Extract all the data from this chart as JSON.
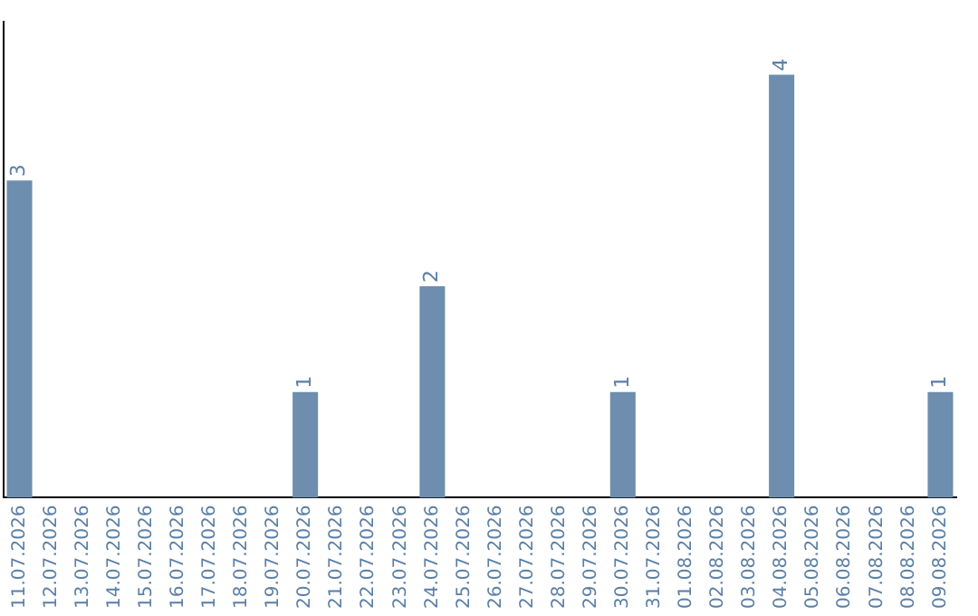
{
  "chart_data": {
    "type": "bar",
    "categories": [
      "11.07.2026",
      "12.07.2026",
      "13.07.2026",
      "14.07.2026",
      "15.07.2026",
      "16.07.2026",
      "17.07.2026",
      "18.07.2026",
      "19.07.2026",
      "20.07.2026",
      "21.07.2026",
      "22.07.2026",
      "23.07.2026",
      "24.07.2026",
      "25.07.2026",
      "26.07.2026",
      "27.07.2026",
      "28.07.2026",
      "29.07.2026",
      "30.07.2026",
      "31.07.2026",
      "01.08.2026",
      "02.08.2026",
      "03.08.2026",
      "04.08.2026",
      "05.08.2026",
      "06.08.2026",
      "07.08.2026",
      "08.08.2026",
      "09.08.2026"
    ],
    "values": [
      3,
      0,
      0,
      0,
      0,
      0,
      0,
      0,
      0,
      1,
      0,
      0,
      0,
      2,
      0,
      0,
      0,
      0,
      0,
      1,
      0,
      0,
      0,
      0,
      4,
      0,
      0,
      0,
      0,
      1
    ],
    "value_labels": [
      "3",
      null,
      null,
      null,
      null,
      null,
      null,
      null,
      null,
      "1",
      null,
      null,
      null,
      "2",
      null,
      null,
      null,
      null,
      null,
      "1",
      null,
      null,
      null,
      null,
      "4",
      null,
      null,
      null,
      null,
      "1"
    ],
    "color": "#6d8eae",
    "grid": false,
    "legend": false,
    "tick_labels": "x"
  }
}
